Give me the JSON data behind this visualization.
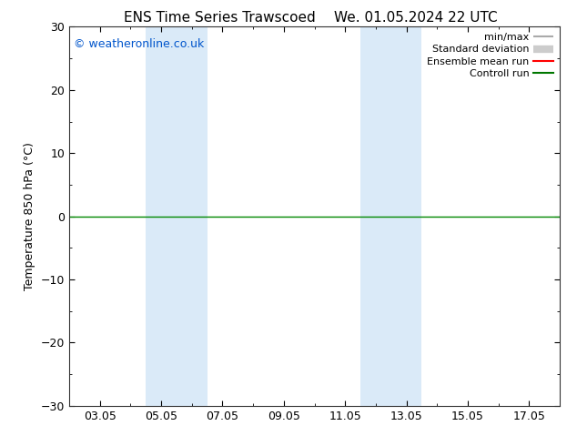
{
  "title_left": "ENS Time Series Trawscoed",
  "title_right": "We. 01.05.2024 22 UTC",
  "ylabel": "Temperature 850 hPa (°C)",
  "ylim": [
    -30,
    30
  ],
  "yticks": [
    -30,
    -20,
    -10,
    0,
    10,
    20,
    30
  ],
  "xtick_labels": [
    "03.05",
    "05.05",
    "07.05",
    "09.05",
    "11.05",
    "13.05",
    "15.05",
    "17.05"
  ],
  "xtick_positions": [
    2,
    4,
    6,
    8,
    10,
    12,
    14,
    16
  ],
  "xlim": [
    1,
    17
  ],
  "shaded_regions": [
    {
      "xmin": 3.5,
      "xmax": 5.5,
      "color": "#daeaf8"
    },
    {
      "xmin": 10.5,
      "xmax": 12.5,
      "color": "#daeaf8"
    }
  ],
  "hline_y": 0,
  "hline_color": "#008800",
  "watermark": "© weatheronline.co.uk",
  "watermark_color": "#0055cc",
  "legend_labels": [
    "min/max",
    "Standard deviation",
    "Ensemble mean run",
    "Controll run"
  ],
  "legend_line_colors": [
    "#aaaaaa",
    "#cccccc",
    "#ff0000",
    "#007700"
  ],
  "background_color": "#ffffff",
  "plot_bg_color": "#ffffff",
  "title_fontsize": 11,
  "axis_fontsize": 9,
  "tick_fontsize": 9,
  "watermark_fontsize": 9
}
